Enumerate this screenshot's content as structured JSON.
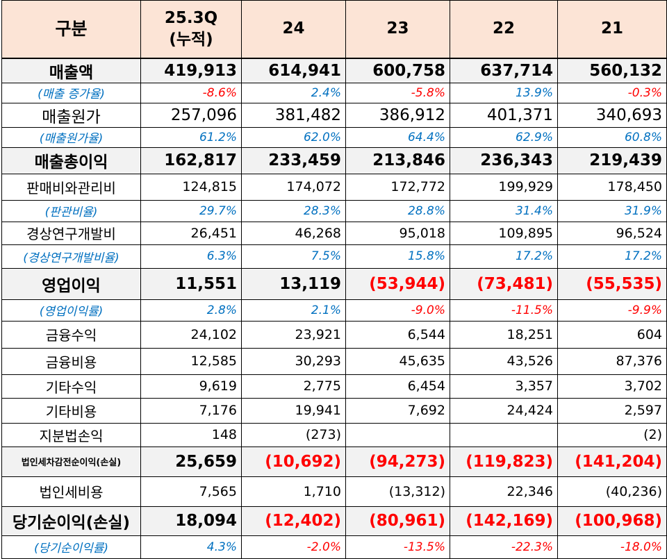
{
  "header": {
    "label": "구분",
    "columns": [
      "25.3Q\n(누적)",
      "24",
      "23",
      "22",
      "21"
    ]
  },
  "rows": [
    {
      "label": "매출액",
      "type": "bold",
      "values": [
        "419,913",
        "614,941",
        "600,758",
        "637,714",
        "560,132"
      ]
    },
    {
      "label": "(매출 증가율)",
      "type": "ratio",
      "values": [
        "-8.6%",
        "2.4%",
        "-5.8%",
        "13.9%",
        "-0.3%"
      ]
    },
    {
      "label": "매출원가",
      "type": "big",
      "values": [
        "257,096",
        "381,482",
        "386,912",
        "401,371",
        "340,693"
      ]
    },
    {
      "label": "(매출원가율)",
      "type": "ratio",
      "values": [
        "61.2%",
        "62.0%",
        "64.4%",
        "62.9%",
        "60.8%"
      ]
    },
    {
      "label": "매출총이익",
      "type": "bold",
      "values": [
        "162,817",
        "233,459",
        "213,846",
        "236,343",
        "219,439"
      ]
    },
    {
      "label": "판매비와관리비",
      "type": "normal",
      "values": [
        "124,815",
        "174,072",
        "172,772",
        "199,929",
        "178,450"
      ]
    },
    {
      "label": "(판관비율)",
      "type": "ratio",
      "values": [
        "29.7%",
        "28.3%",
        "28.8%",
        "31.4%",
        "31.9%"
      ]
    },
    {
      "label": "경상연구개발비",
      "type": "normal",
      "values": [
        "26,451",
        "46,268",
        "95,018",
        "109,895",
        "96,524"
      ]
    },
    {
      "label": "(경상연구개발비율)",
      "type": "ratio",
      "values": [
        "6.3%",
        "7.5%",
        "15.8%",
        "17.2%",
        "17.2%"
      ]
    },
    {
      "label": "영업이익",
      "type": "bold",
      "values": [
        "11,551",
        "13,119",
        "(53,944)",
        "(73,481)",
        "(55,535)"
      ]
    },
    {
      "label": "(영업이익률)",
      "type": "ratio",
      "values": [
        "2.8%",
        "2.1%",
        "-9.0%",
        "-11.5%",
        "-9.9%"
      ]
    },
    {
      "label": "금융수익",
      "type": "normal",
      "values": [
        "24,102",
        "23,921",
        "6,544",
        "18,251",
        "604"
      ]
    },
    {
      "label": "금융비용",
      "type": "normal",
      "values": [
        "12,585",
        "30,293",
        "45,635",
        "43,526",
        "87,376"
      ]
    },
    {
      "label": "기타수익",
      "type": "normal",
      "values": [
        "9,619",
        "2,775",
        "6,454",
        "3,357",
        "3,702"
      ]
    },
    {
      "label": "기타비용",
      "type": "normal",
      "values": [
        "7,176",
        "19,941",
        "7,692",
        "24,424",
        "2,597"
      ]
    },
    {
      "label": "지분법손익",
      "type": "normal",
      "values": [
        "148",
        "(273)",
        "",
        "",
        "(2)"
      ]
    },
    {
      "label": "법인세차감전순이익(손실)",
      "type": "bold",
      "small": true,
      "values": [
        "25,659",
        "(10,692)",
        "(94,273)",
        "(119,823)",
        "(141,204)"
      ]
    },
    {
      "label": "법인세비용",
      "type": "normal",
      "values": [
        "7,565",
        "1,710",
        "(13,312)",
        "22,346",
        "(40,236)"
      ]
    },
    {
      "label": "당기순이익(손실)",
      "type": "bold",
      "values": [
        "18,094",
        "(12,402)",
        "(80,961)",
        "(142,169)",
        "(100,968)"
      ]
    },
    {
      "label": "(당기순이익률)",
      "type": "ratio",
      "values": [
        "4.3%",
        "-2.0%",
        "-13.5%",
        "-22.3%",
        "-18.0%"
      ]
    }
  ],
  "colors": {
    "header_bg": "#fce4d6",
    "bold_row_bg": "#f2f2f2",
    "ratio_text": "#0070c0",
    "negative_text": "#ff0000"
  }
}
